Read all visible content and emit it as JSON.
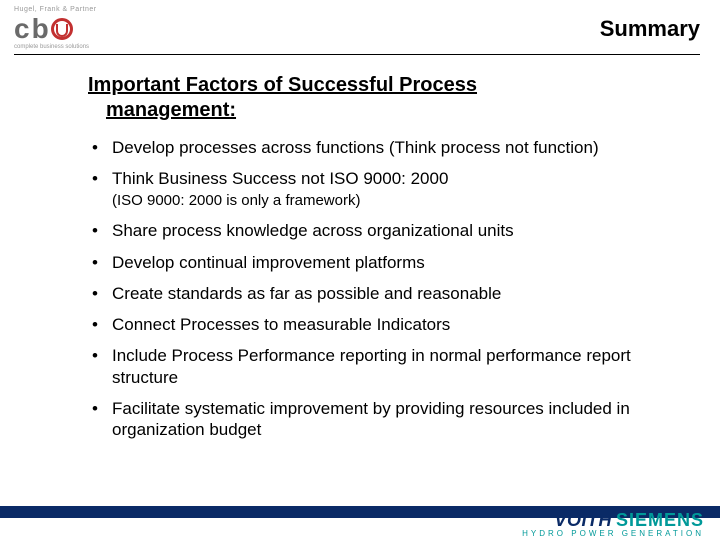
{
  "header": {
    "logo_top": "Hugel, Frank & Partner",
    "logo_sub": "complete business solutions",
    "page_title": "Summary"
  },
  "content": {
    "heading_line1": "Important Factors of Successful Process",
    "heading_line2": "management:",
    "bullets": [
      {
        "text": "Develop processes across functions (Think process not function)"
      },
      {
        "text": "Think Business Success not ISO 9000: 2000",
        "note": "(ISO 9000: 2000 is only a framework)"
      },
      {
        "text": "Share process knowledge across organizational units"
      },
      {
        "text": "Develop continual improvement platforms"
      },
      {
        "text": "Create standards as far as possible and reasonable"
      },
      {
        "text": "Connect Processes to measurable Indicators"
      },
      {
        "text": "Include Process Performance reporting in normal performance report structure"
      },
      {
        "text": "Facilitate systematic improvement by providing resources included in organization budget"
      }
    ]
  },
  "footer": {
    "brand1": "VOITH",
    "brand2": "SIEMENS",
    "tagline": "HYDRO POWER GENERATION"
  },
  "colors": {
    "footer_bar": "#0a2a66",
    "siemens": "#009999",
    "logo_red": "#c23030"
  }
}
